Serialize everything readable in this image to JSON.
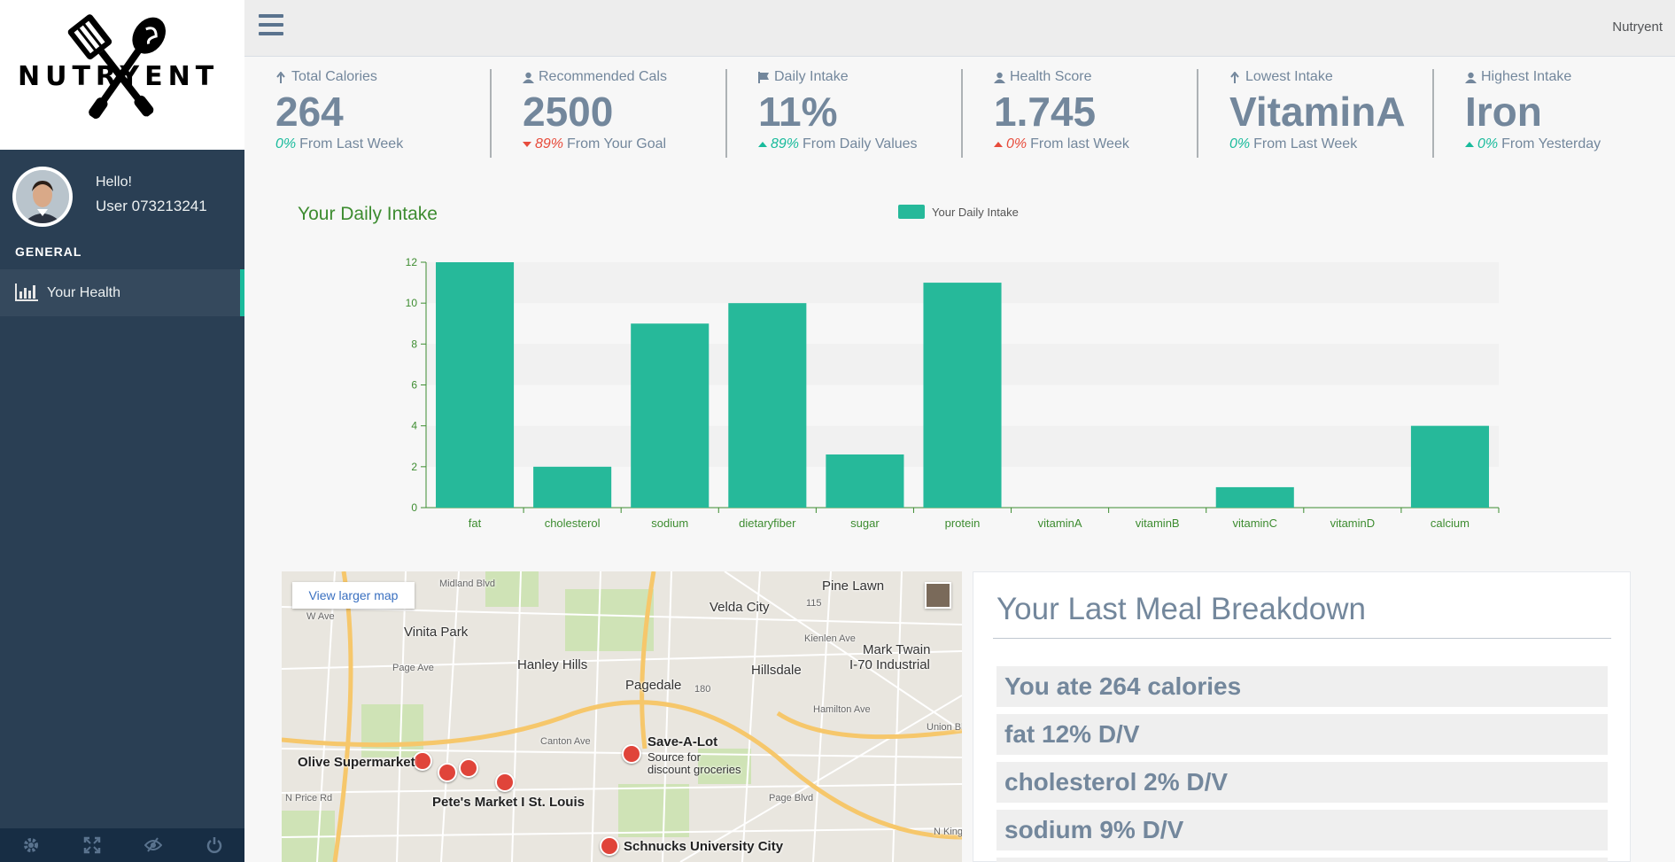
{
  "app": {
    "name": "Nutryent",
    "logo_text": "NUTRYENT"
  },
  "profile": {
    "greeting": "Hello!",
    "username": "User 073213241"
  },
  "sidebar": {
    "section": "GENERAL",
    "items": [
      {
        "label": "Your Health",
        "icon": "bar-chart-icon",
        "active": true
      }
    ],
    "footer_icons": [
      "settings-icon",
      "fullscreen-icon",
      "lock-icon",
      "power-icon"
    ]
  },
  "tiles": [
    {
      "icon": "arrow-up-icon",
      "label": "Total Calories",
      "value": "264",
      "change": "0%",
      "change_color": "green",
      "trend": "none",
      "suffix": "From Last Week"
    },
    {
      "icon": "user-icon",
      "label": "Recommended Cals",
      "value": "2500",
      "change": "89%",
      "change_color": "red",
      "trend": "down",
      "suffix": "From Your Goal"
    },
    {
      "icon": "flag-icon",
      "label": "Daily Intake",
      "value": "11%",
      "change": "89%",
      "change_color": "green",
      "trend": "up",
      "suffix": "From Daily Values"
    },
    {
      "icon": "user-icon",
      "label": "Health Score",
      "value": "1.745",
      "change": "0%",
      "change_color": "red",
      "trend": "up-red",
      "suffix": "From last Week"
    },
    {
      "icon": "arrow-up-icon",
      "label": "Lowest Intake",
      "value": "VitaminA",
      "change": "0%",
      "change_color": "green",
      "trend": "none",
      "suffix": "From Last Week"
    },
    {
      "icon": "user-icon",
      "label": "Highest Intake",
      "value": "Iron",
      "change": "0%",
      "change_color": "green",
      "trend": "up",
      "suffix": "From Yesterday"
    }
  ],
  "chart_data": {
    "type": "bar",
    "title": "Your Daily Intake",
    "series": [
      {
        "name": "Your Daily Intake",
        "values": [
          12,
          2,
          9,
          10,
          2.6,
          11,
          0,
          0,
          1,
          0,
          4
        ]
      }
    ],
    "categories": [
      "fat",
      "cholesterol",
      "sodium",
      "dietaryfiber",
      "sugar",
      "protein",
      "vitaminA",
      "vitaminB",
      "vitaminC",
      "vitaminD",
      "calcium"
    ],
    "ylim": [
      0,
      12
    ],
    "yticks": [
      0,
      2,
      4,
      6,
      8,
      10,
      12
    ],
    "legend_position": "top",
    "color": "#26b99a",
    "axis_color": "#3d8c30"
  },
  "map": {
    "button": "View larger map",
    "labels": [
      "Pine Lawn",
      "Velda City",
      "Vinita Park",
      "Hanley Hills",
      "Pagedale",
      "Hillsdale",
      "Mark Twain",
      "I-70 Industrial",
      "Olive Supermarket",
      "Save-A-Lot",
      "Source for",
      "discount groceries",
      "Pete's Market I St. Louis",
      "Schnucks University City",
      "Page Ave",
      "Canton Ave",
      "Midland Blvd",
      "Kienlen Ave",
      "Hamilton Ave",
      "Union Blvd",
      "Page Blvd",
      "N Price Rd",
      "N Kingsh",
      "W Ave",
      "115",
      "180"
    ]
  },
  "meal": {
    "title": "Your Last Meal Breakdown",
    "rows": [
      "You ate 264 calories",
      "fat 12% D/V",
      "cholesterol 2% D/V",
      "sodium 9% D/V",
      ""
    ]
  }
}
